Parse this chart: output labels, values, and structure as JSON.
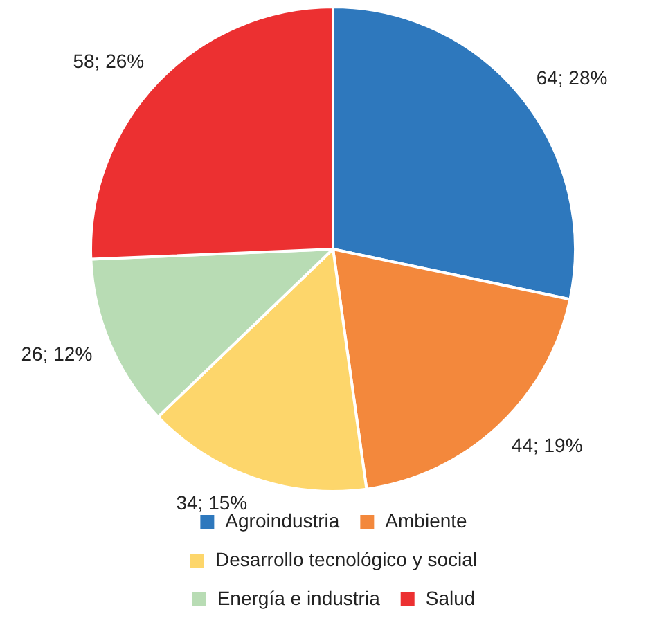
{
  "chart_data": {
    "type": "pie",
    "categories": [
      "Agroindustria",
      "Ambiente",
      "Desarrollo tecnológico y social",
      "Energía e industria",
      "Salud"
    ],
    "values": [
      64,
      44,
      34,
      26,
      58
    ],
    "colors": [
      "#2e78bd",
      "#f3883c",
      "#fdd66b",
      "#b8dcb4",
      "#ec3031"
    ],
    "value_labels": [
      "64; 28%",
      "44; 19%",
      "34; 15%",
      "26; 12%",
      "58; 26%"
    ],
    "legend": "bottom"
  }
}
